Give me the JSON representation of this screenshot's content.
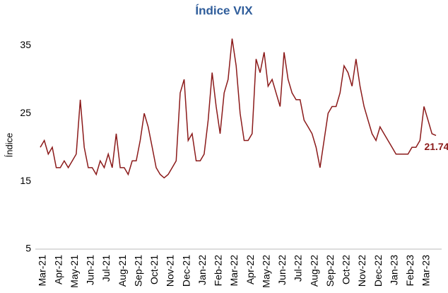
{
  "chart_data": {
    "type": "line",
    "title": "Índice VIX",
    "y_label": "Índice",
    "categories": [
      "Mar-21",
      null,
      null,
      null,
      "Apr-21",
      null,
      null,
      null,
      "May-21",
      null,
      null,
      null,
      "Jun-21",
      null,
      null,
      null,
      "Jul-21",
      null,
      null,
      null,
      "Aug-21",
      null,
      null,
      null,
      "Sep-21",
      null,
      null,
      null,
      "Oct-21",
      null,
      null,
      null,
      "Nov-21",
      null,
      null,
      null,
      "Dec-21",
      null,
      null,
      null,
      "Jan-22",
      null,
      null,
      null,
      "Feb-22",
      null,
      null,
      null,
      "Mar-22",
      null,
      null,
      null,
      "Apr-22",
      null,
      null,
      null,
      "May-22",
      null,
      null,
      null,
      "Jun-22",
      null,
      null,
      null,
      "Jul-22",
      null,
      null,
      null,
      "Aug-22",
      null,
      null,
      null,
      "Sep-22",
      null,
      null,
      null,
      "Oct-22",
      null,
      null,
      null,
      "Nov-22",
      null,
      null,
      null,
      "Dec-22",
      null,
      null,
      null,
      "Jan-23",
      null,
      null,
      null,
      "Feb-23",
      null,
      null,
      null,
      "Mar-23",
      null,
      null,
      null
    ],
    "series": [
      {
        "name": "VIX",
        "color": "#8b1a1a",
        "values": [
          20,
          21,
          19,
          20,
          17,
          17,
          18,
          17,
          18,
          19,
          27,
          20,
          17,
          17,
          16,
          18,
          17,
          19,
          17,
          22,
          17,
          17,
          16,
          18,
          18,
          21,
          25,
          23,
          20,
          17,
          16,
          15.5,
          16,
          17,
          18,
          28,
          30,
          21,
          22,
          18,
          18,
          19,
          24,
          31,
          26,
          22,
          28,
          30,
          36,
          32,
          25,
          21,
          21,
          22,
          33,
          31,
          34,
          29,
          30,
          28,
          26,
          34,
          30,
          28,
          27,
          27,
          24,
          23,
          22,
          20,
          17,
          21,
          25,
          26,
          26,
          28,
          32,
          31,
          29,
          33,
          29,
          26,
          24,
          22,
          21,
          23,
          22,
          21,
          20,
          19,
          19,
          19,
          19,
          20,
          20,
          21,
          26,
          24,
          22,
          21.74
        ]
      }
    ],
    "ylim": [
      5,
      37
    ],
    "yticks": [
      5,
      15,
      25,
      35
    ]
  }
}
